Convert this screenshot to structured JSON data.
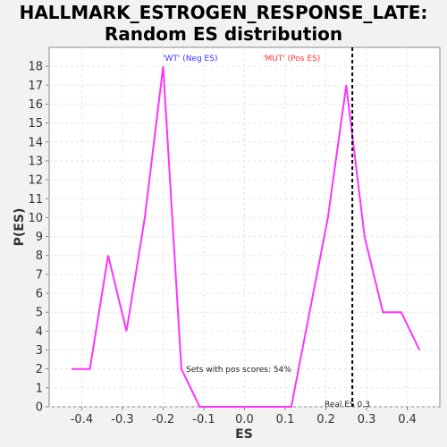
{
  "chart_data": {
    "type": "line",
    "title": [
      "HALLMARK_ESTROGEN_RESPONSE_LATE:",
      "Random ES distribution"
    ],
    "xlabel": "ES",
    "ylabel": "P(ES)",
    "xlim": [
      -0.48,
      0.48
    ],
    "ylim": [
      0,
      19
    ],
    "x_ticks": [
      "-0.4",
      "-0.3",
      "-0.2",
      "-0.1",
      "0.0",
      "0.1",
      "0.2",
      "0.3",
      "0.4"
    ],
    "y_ticks": [
      "0",
      "1",
      "2",
      "3",
      "4",
      "5",
      "6",
      "7",
      "8",
      "9",
      "10",
      "11",
      "12",
      "13",
      "14",
      "15",
      "16",
      "17",
      "18"
    ],
    "grid": true,
    "series": [
      {
        "color": "#ff33ff",
        "x": [
          -0.425,
          -0.38,
          -0.335,
          -0.29,
          -0.245,
          -0.2,
          -0.155,
          -0.11,
          -0.065,
          -0.02,
          0.025,
          0.07,
          0.115,
          0.16,
          0.205,
          0.25,
          0.295,
          0.34,
          0.385,
          0.43
        ],
        "y": [
          2,
          2,
          8,
          4,
          10,
          18,
          2,
          0,
          0,
          0,
          0,
          0,
          0,
          5,
          10,
          17,
          9,
          5,
          5,
          3
        ]
      }
    ],
    "real_es": 0.265,
    "annotations": {
      "neg_label": "'WT' (Neg ES)",
      "pos_label": "'MUT' (Pos ES)",
      "pos_scores": "Sets with pos scores: 54%",
      "real_es": "Real ES 0.3"
    },
    "colors": {
      "neg": "#3333ff",
      "pos": "#ff3333",
      "line": "#ff33ff",
      "real_es_line": "#000000"
    }
  }
}
